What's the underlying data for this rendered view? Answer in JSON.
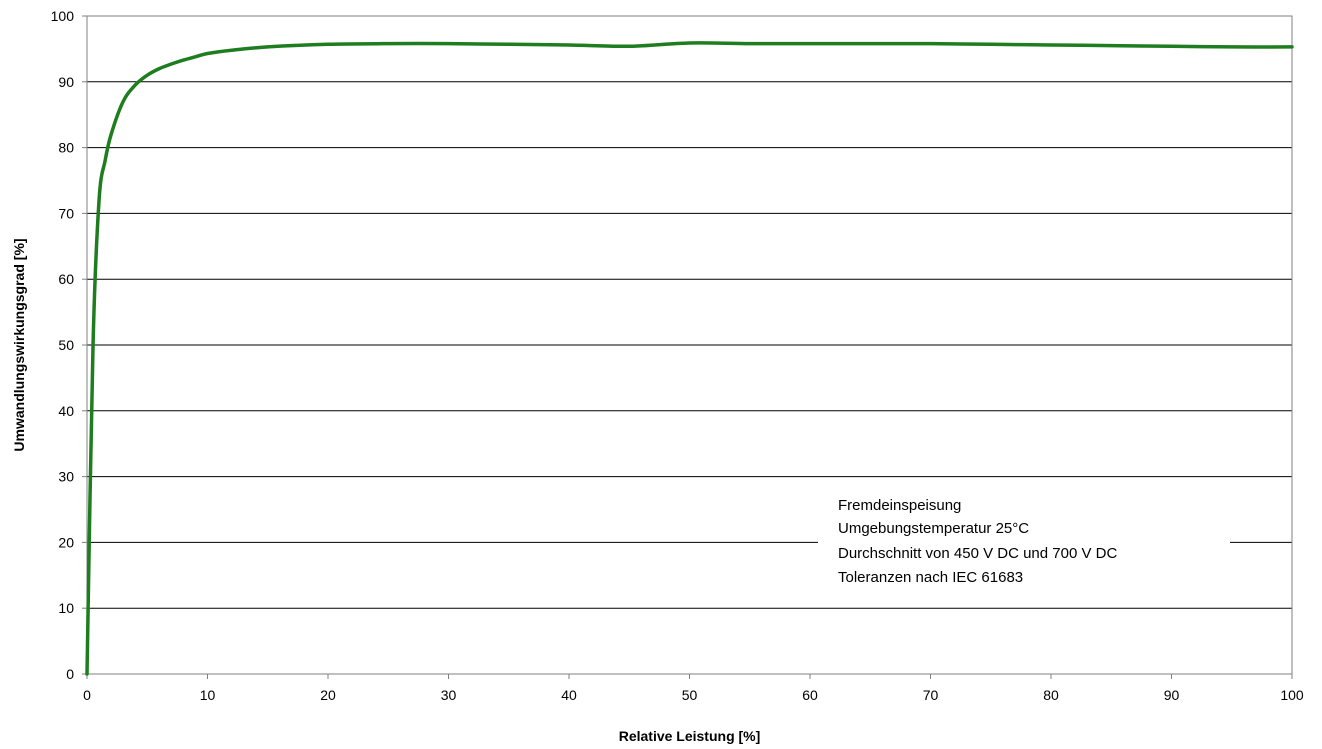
{
  "chart_data": {
    "type": "line",
    "title": "",
    "xlabel": "Relative Leistung [%]",
    "ylabel": "Umwandlungswirkungsgrad [%]",
    "xlim": [
      0,
      100
    ],
    "ylim": [
      0,
      100
    ],
    "x_ticks": [
      "0",
      "10",
      "20",
      "30",
      "40",
      "50",
      "60",
      "70",
      "80",
      "90",
      "100"
    ],
    "y_ticks": [
      "0",
      "10",
      "20",
      "30",
      "40",
      "50",
      "60",
      "70",
      "80",
      "90",
      "100"
    ],
    "grid": "horizontal",
    "series": [
      {
        "color": "#1e7d1e",
        "x": [
          0,
          0.5,
          1,
          1.5,
          2,
          3,
          4,
          5,
          6,
          7,
          8,
          9,
          10,
          12,
          15,
          20,
          25,
          30,
          35,
          40,
          45,
          50,
          55,
          60,
          65,
          70,
          75,
          80,
          85,
          90,
          95,
          100
        ],
        "y": [
          0,
          50,
          72,
          78,
          82,
          87,
          89.5,
          91,
          92,
          92.7,
          93.3,
          93.8,
          94.3,
          94.8,
          95.3,
          95.7,
          95.8,
          95.8,
          95.7,
          95.6,
          95.4,
          95.9,
          95.8,
          95.8,
          95.8,
          95.8,
          95.7,
          95.6,
          95.5,
          95.4,
          95.3,
          95.3
        ]
      }
    ],
    "annotation": {
      "lines": [
        "Fremdeinspeisung",
        "Umgebungstemperatur 25°C",
        "Durchschnitt von 450 V DC und 700 V DC",
        "Toleranzen nach IEC 61683"
      ]
    }
  }
}
